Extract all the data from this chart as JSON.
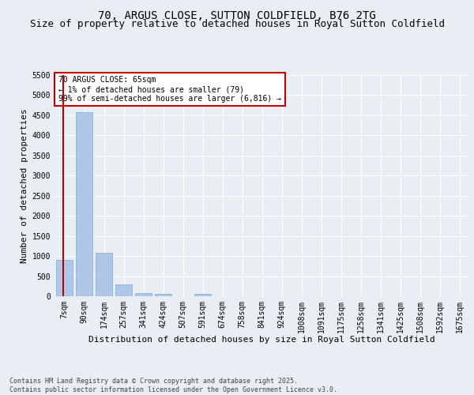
{
  "title1": "70, ARGUS CLOSE, SUTTON COLDFIELD, B76 2TG",
  "title2": "Size of property relative to detached houses in Royal Sutton Coldfield",
  "xlabel": "Distribution of detached houses by size in Royal Sutton Coldfield",
  "ylabel": "Number of detached properties",
  "categories": [
    "7sqm",
    "90sqm",
    "174sqm",
    "257sqm",
    "341sqm",
    "424sqm",
    "507sqm",
    "591sqm",
    "674sqm",
    "758sqm",
    "841sqm",
    "924sqm",
    "1008sqm",
    "1091sqm",
    "1175sqm",
    "1258sqm",
    "1341sqm",
    "1425sqm",
    "1508sqm",
    "1592sqm",
    "1675sqm"
  ],
  "values": [
    900,
    4580,
    1090,
    295,
    75,
    55,
    0,
    55,
    0,
    0,
    0,
    0,
    0,
    0,
    0,
    0,
    0,
    0,
    0,
    0,
    0
  ],
  "bar_color": "#aec6e8",
  "bar_edge_color": "#7aafd4",
  "vline_color": "#c00000",
  "annotation_text": "70 ARGUS CLOSE: 65sqm\n← 1% of detached houses are smaller (79)\n99% of semi-detached houses are larger (6,816) →",
  "annotation_box_color": "#c00000",
  "ylim": [
    0,
    5500
  ],
  "yticks": [
    0,
    500,
    1000,
    1500,
    2000,
    2500,
    3000,
    3500,
    4000,
    4500,
    5000,
    5500
  ],
  "background_color": "#e8eef4",
  "grid_color": "#ffffff",
  "footer": "Contains HM Land Registry data © Crown copyright and database right 2025.\nContains public sector information licensed under the Open Government Licence v3.0.",
  "title1_fontsize": 10,
  "title2_fontsize": 9,
  "xlabel_fontsize": 8,
  "ylabel_fontsize": 8,
  "tick_fontsize": 7,
  "footer_fontsize": 6,
  "ann_fontsize": 7
}
